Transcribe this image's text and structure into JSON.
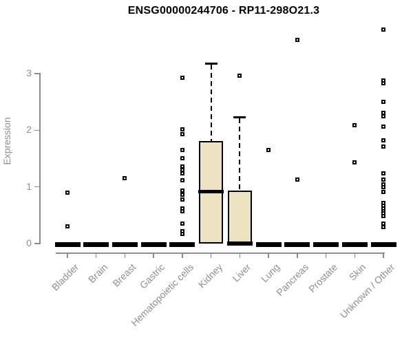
{
  "chart_data": {
    "type": "boxplot",
    "title": "ENSG00000244706 - RP11-298O21.3",
    "ylabel": "Expression",
    "xlabel": "",
    "yticks": [
      0,
      1,
      2,
      3
    ],
    "ylim": [
      -0.2,
      3.85
    ],
    "grid": false,
    "legend": null,
    "categories": [
      "Bladder",
      "Brain",
      "Breast",
      "Gastric",
      "Hematopoietic cells",
      "Kidney",
      "Liver",
      "Lung",
      "Pancreas",
      "Prostate",
      "Skin",
      "Unknown / Other"
    ],
    "series": [
      {
        "category": "Bladder",
        "q1": 0,
        "median": 0,
        "q3": 0,
        "whisker_low": 0,
        "whisker_high": 0,
        "outliers": [
          0.9,
          0.3
        ]
      },
      {
        "category": "Brain",
        "q1": 0,
        "median": 0,
        "q3": 0,
        "whisker_low": 0,
        "whisker_high": 0,
        "outliers": []
      },
      {
        "category": "Breast",
        "q1": 0,
        "median": 0,
        "q3": 0,
        "whisker_low": 0,
        "whisker_high": 0,
        "outliers": [
          1.15
        ]
      },
      {
        "category": "Gastric",
        "q1": 0,
        "median": 0,
        "q3": 0,
        "whisker_low": 0,
        "whisker_high": 0,
        "outliers": []
      },
      {
        "category": "Hematopoietic cells",
        "q1": 0,
        "median": 0,
        "q3": 0,
        "whisker_low": 0,
        "whisker_high": 0,
        "outliers": [
          2.93,
          2.02,
          1.93,
          1.65,
          1.51,
          1.36,
          1.3,
          1.24,
          1.12,
          0.94,
          0.86,
          0.78,
          0.62,
          0.57,
          0.35,
          0.22,
          0.17
        ]
      },
      {
        "category": "Kidney",
        "q1": 0,
        "median": 0.92,
        "q3": 1.81,
        "whisker_low": 0,
        "whisker_high": 3.18,
        "outliers": []
      },
      {
        "category": "Liver",
        "q1": 0,
        "median": 0.02,
        "q3": 0.94,
        "whisker_low": 0,
        "whisker_high": 2.23,
        "outliers": [
          2.96
        ]
      },
      {
        "category": "Lung",
        "q1": 0,
        "median": 0,
        "q3": 0,
        "whisker_low": 0,
        "whisker_high": 0,
        "outliers": [
          1.65
        ]
      },
      {
        "category": "Pancreas",
        "q1": 0,
        "median": 0,
        "q3": 0,
        "whisker_low": 0,
        "whisker_high": 0,
        "outliers": [
          3.6,
          1.13
        ]
      },
      {
        "category": "Prostate",
        "q1": 0,
        "median": 0,
        "q3": 0,
        "whisker_low": 0,
        "whisker_high": 0,
        "outliers": []
      },
      {
        "category": "Skin",
        "q1": 0,
        "median": 0,
        "q3": 0,
        "whisker_low": 0,
        "whisker_high": 0,
        "outliers": [
          2.09,
          1.43
        ]
      },
      {
        "category": "Unknown / Other",
        "q1": 0,
        "median": 0,
        "q3": 0,
        "whisker_low": 0,
        "whisker_high": 0,
        "outliers": [
          3.78,
          2.88,
          2.83,
          2.5,
          2.31,
          2.25,
          2.07,
          1.82,
          1.71,
          1.24,
          1.13,
          1.04,
          1.0,
          0.91,
          0.72,
          0.67,
          0.62,
          0.57,
          0.53,
          0.49,
          0.35,
          0.29
        ]
      }
    ],
    "colors": {
      "box_fill": "#ede3c3",
      "box_border": "#000000",
      "axis": "#8a8a8a",
      "text": "#8f8f8f",
      "title": "#000000",
      "outlier": "#000000",
      "background": "#ffffff"
    }
  }
}
